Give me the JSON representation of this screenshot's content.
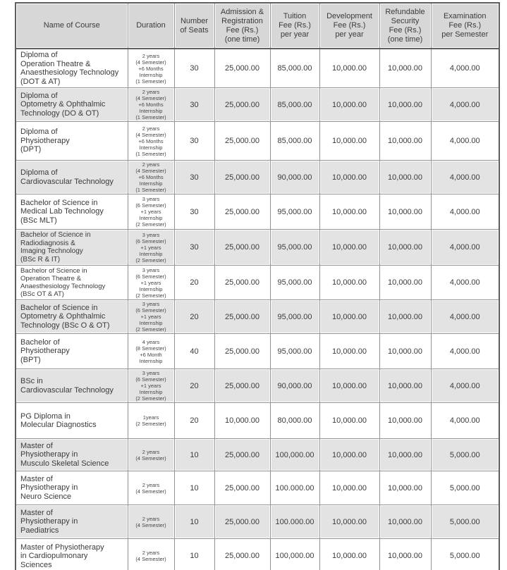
{
  "colors": {
    "header_bg": "#d7d7d7",
    "shaded_row_bg": "#e3e3e3",
    "border": "#949494",
    "outer_border": "#5f5f5f",
    "text": "#3b3b3b"
  },
  "table": {
    "columns": [
      "Name of Course",
      "Duration",
      "Number\nof Seats",
      "Admission &\nRegistration\nFee (Rs.)\n(one time)",
      "Tuition\nFee (Rs.)\nper year",
      "Development\nFee (Rs.)\nper year",
      "Refundable\nSecurity\nFee (Rs.)\n(one time)",
      "Examination\nFee (Rs.)\nper Semester"
    ],
    "rows": [
      {
        "name": "Diploma of\nOperation Theatre &\nAnaesthesiology Technology\n(DOT & AT)",
        "duration": "2 years\n(4 Semester)\n+6 Months\nInternship\n(1 Semester)",
        "seats": "30",
        "admission": "25,000.00",
        "tuition": "85,000.00",
        "development": "10,000.00",
        "security": "10,000.00",
        "exam": "4,000.00"
      },
      {
        "name": "Diploma of\nOptometry & Ophthalmic\nTechnology (DO & OT)",
        "duration": "2 years\n(4 Semester)\n+6 Months\nInternship\n(1 Semester)",
        "seats": "30",
        "admission": "25,000.00",
        "tuition": "85,000.00",
        "development": "10,000.00",
        "security": "10,000.00",
        "exam": "4,000.00"
      },
      {
        "name": "Diploma of\nPhysiotherapy\n(DPT)",
        "duration": "2 years\n(4 Semester)\n+6 Months\nInternship\n(1 Semester)",
        "seats": "30",
        "admission": "25,000.00",
        "tuition": "85,000.00",
        "development": "10,000.00",
        "security": "10,000.00",
        "exam": "4,000.00"
      },
      {
        "name": "Diploma of\nCardiovascular Technology",
        "duration": "2 years\n(4 Semester)\n+6 Months\nInternship\n(1 Semester)",
        "seats": "30",
        "admission": "25,000.00",
        "tuition": "90,000.00",
        "development": "10,000.00",
        "security": "10,000.00",
        "exam": "4,000.00"
      },
      {
        "name": "Bachelor of Science in\nMedical Lab Technology\n(BSc MLT)",
        "duration": "3 years\n(6 Semester)\n+1 years\nInternship\n(2 Semester)",
        "seats": "30",
        "admission": "25,000.00",
        "tuition": "95,000.00",
        "development": "10,000.00",
        "security": "10,000.00",
        "exam": "4,000.00"
      },
      {
        "name": "Bachelor of Science in\nRadiodiagnosis &\nImaging Technology\n(BSc R & IT)",
        "duration": "3 years\n(6 Semester)\n+1 years\nInternship\n(2 Semester)",
        "seats": "30",
        "admission": "25,000.00",
        "tuition": "95,000.00",
        "development": "10,000.00",
        "security": "10,000.00",
        "exam": "4,000.00"
      },
      {
        "name": "Bachelor of Science in\nOperation Theatre &\nAnaesthesiology Technology\n(BSc OT & AT)",
        "duration": "3 years\n(6 Semester)\n+1 years\nInternship\n(2 Semester)",
        "seats": "20",
        "admission": "25,000.00",
        "tuition": "95,000.00",
        "development": "10,000.00",
        "security": "10,000.00",
        "exam": "4,000.00"
      },
      {
        "name": "Bachelor of Science in\nOptometry & Ophthalmic\nTechnology (BSc O & OT)",
        "duration": "3 years\n(6 Semester)\n+1 years\nInternship\n(2 Semester)",
        "seats": "20",
        "admission": "25,000.00",
        "tuition": "95,000.00",
        "development": "10,000.00",
        "security": "10,000.00",
        "exam": "4,000.00"
      },
      {
        "name": "Bachelor of\nPhysiotherapy\n(BPT)",
        "duration": "4 years\n(8 Semester)\n+6 Month\nInternship",
        "seats": "40",
        "admission": "25,000.00",
        "tuition": "95,000.00",
        "development": "10,000.00",
        "security": "10,000.00",
        "exam": "4,000.00"
      },
      {
        "name": "BSc in\nCardiovascular Technology",
        "duration": "3 years\n(6 Semester)\n+1 years\nInternship\n(2 Semester)",
        "seats": "20",
        "admission": "25,000.00",
        "tuition": "90,000.00",
        "development": "10,000.00",
        "security": "10,000.00",
        "exam": "4,000.00"
      },
      {
        "name": "PG Diploma in\nMolecular Diagnostics",
        "duration": "1years\n(2 Semester)",
        "seats": "20",
        "admission": "10,000.00",
        "tuition": "80,000.00",
        "development": "10,000.00",
        "security": "10,000.00",
        "exam": "4,000.00"
      },
      {
        "name": "Master of\nPhysiotherapy in\nMusculo Skeletal Science",
        "duration": "2 years\n(4 Semester)",
        "seats": "10",
        "admission": "25,000.00",
        "tuition": "100,000.00",
        "development": "10,000.00",
        "security": "10,000.00",
        "exam": "5,000.00"
      },
      {
        "name": "Master of\nPhysiotherapy in\nNeuro Science",
        "duration": "2 years\n(4 Semester)",
        "seats": "10",
        "admission": "25,000.00",
        "tuition": "100.000.00",
        "development": "10,000.00",
        "security": "10,000.00",
        "exam": "5,000.00"
      },
      {
        "name": "Master of\nPhysiotherapy in\nPaediatrics",
        "duration": "2 years\n(4 Semester)",
        "seats": "10",
        "admission": "25,000.00",
        "tuition": "100.000.00",
        "development": "10,000.00",
        "security": "10,000.00",
        "exam": "5,000.00"
      },
      {
        "name": "Master of Physiotherapy\nin Cardiopulmonary\nSciences",
        "duration": "2 years\n(4 Semester)",
        "seats": "10",
        "admission": "25,000.00",
        "tuition": "100,000.00",
        "development": "10,000.00",
        "security": "10,000.00",
        "exam": "5,000.00"
      }
    ]
  }
}
